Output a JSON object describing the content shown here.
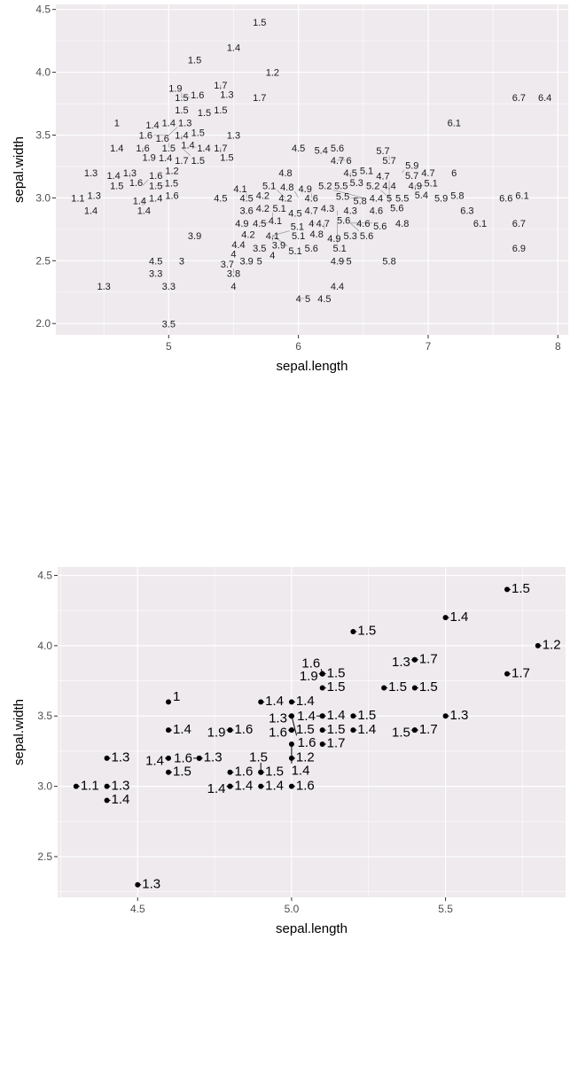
{
  "chart_data": [
    {
      "type": "scatter",
      "geom": "text",
      "xlabel": "sepal.length",
      "ylabel": "sepal.width",
      "xlim": [
        4.13,
        8.08
      ],
      "ylim": [
        1.91,
        4.54
      ],
      "xticks": [
        "5",
        "6",
        "7",
        "8"
      ],
      "xtickvals": [
        5,
        6,
        7,
        8
      ],
      "yticks": [
        "2.0",
        "2.5",
        "3.0",
        "3.5",
        "4.0",
        "4.5"
      ],
      "ytickvals": [
        2.0,
        2.5,
        3.0,
        3.5,
        4.0,
        4.5
      ],
      "grid": true,
      "points": [
        [
          5.1,
          3.5,
          1.4
        ],
        [
          4.9,
          3.0,
          1.4
        ],
        [
          4.7,
          3.2,
          1.3
        ],
        [
          4.6,
          3.1,
          1.5
        ],
        [
          5.0,
          3.6,
          1.4
        ],
        [
          5.4,
          3.9,
          1.7
        ],
        [
          4.6,
          3.4,
          1.4
        ],
        [
          5.0,
          3.4,
          1.5
        ],
        [
          4.4,
          2.9,
          1.4
        ],
        [
          4.9,
          3.1,
          1.5
        ],
        [
          5.4,
          3.7,
          1.5
        ],
        [
          4.8,
          3.4,
          1.6
        ],
        [
          4.8,
          3.0,
          1.4
        ],
        [
          4.3,
          3.0,
          1.1
        ],
        [
          5.8,
          4.0,
          1.2
        ],
        [
          5.7,
          4.4,
          1.5
        ],
        [
          5.4,
          3.9,
          1.3
        ],
        [
          5.1,
          3.5,
          1.4
        ],
        [
          5.7,
          3.8,
          1.7
        ],
        [
          5.1,
          3.8,
          1.5
        ],
        [
          5.4,
          3.4,
          1.7
        ],
        [
          5.1,
          3.7,
          1.5
        ],
        [
          4.6,
          3.6,
          1
        ],
        [
          5.1,
          3.3,
          1.7
        ],
        [
          4.8,
          3.4,
          1.9
        ],
        [
          5.0,
          3.0,
          1.6
        ],
        [
          5.0,
          3.4,
          1.6
        ],
        [
          5.2,
          3.5,
          1.5
        ],
        [
          5.2,
          3.4,
          1.4
        ],
        [
          4.7,
          3.2,
          1.6
        ],
        [
          4.8,
          3.1,
          1.6
        ],
        [
          5.4,
          3.4,
          1.5
        ],
        [
          5.2,
          4.1,
          1.5
        ],
        [
          5.5,
          4.2,
          1.4
        ],
        [
          4.9,
          3.1,
          1.5
        ],
        [
          5.0,
          3.2,
          1.2
        ],
        [
          5.5,
          3.5,
          1.3
        ],
        [
          4.9,
          3.6,
          1.4
        ],
        [
          4.4,
          3.0,
          1.3
        ],
        [
          5.1,
          3.4,
          1.5
        ],
        [
          5.0,
          3.5,
          1.3
        ],
        [
          4.5,
          2.3,
          1.3
        ],
        [
          4.4,
          3.2,
          1.3
        ],
        [
          5.0,
          3.5,
          1.6
        ],
        [
          5.1,
          3.8,
          1.9
        ],
        [
          4.8,
          3.0,
          1.4
        ],
        [
          5.1,
          3.8,
          1.6
        ],
        [
          4.6,
          3.2,
          1.4
        ],
        [
          5.3,
          3.7,
          1.5
        ],
        [
          5.0,
          3.3,
          1.4
        ],
        [
          7.0,
          3.2,
          4.7
        ],
        [
          6.4,
          3.2,
          4.5
        ],
        [
          6.9,
          3.1,
          4.9
        ],
        [
          5.5,
          2.3,
          4
        ],
        [
          6.5,
          2.8,
          4.6
        ],
        [
          5.7,
          2.8,
          4.5
        ],
        [
          6.3,
          3.3,
          4.7
        ],
        [
          4.9,
          2.4,
          3.3
        ],
        [
          6.6,
          2.9,
          4.6
        ],
        [
          5.2,
          2.7,
          3.9
        ],
        [
          5.0,
          2.0,
          3.5
        ],
        [
          5.9,
          3.0,
          4.2
        ],
        [
          6.0,
          2.2,
          4
        ],
        [
          6.1,
          2.9,
          4.7
        ],
        [
          5.6,
          2.9,
          3.6
        ],
        [
          6.7,
          3.1,
          4.4
        ],
        [
          5.6,
          3.0,
          4.5
        ],
        [
          5.8,
          2.7,
          4.1
        ],
        [
          6.2,
          2.2,
          4.5
        ],
        [
          5.6,
          2.5,
          3.9
        ],
        [
          5.9,
          3.2,
          4.8
        ],
        [
          6.1,
          2.8,
          4
        ],
        [
          6.3,
          2.5,
          4.9
        ],
        [
          6.1,
          2.8,
          4.7
        ],
        [
          6.4,
          2.9,
          4.3
        ],
        [
          6.6,
          3.0,
          4.4
        ],
        [
          6.8,
          2.8,
          4.8
        ],
        [
          6.7,
          3.0,
          5
        ],
        [
          6.0,
          2.9,
          4.5
        ],
        [
          5.7,
          2.6,
          3.5
        ],
        [
          5.5,
          2.4,
          3.8
        ],
        [
          5.5,
          2.4,
          3.7
        ],
        [
          5.8,
          2.7,
          3.9
        ],
        [
          6.0,
          2.7,
          5.1
        ],
        [
          5.4,
          3.0,
          4.5
        ],
        [
          6.0,
          3.4,
          4.5
        ],
        [
          6.7,
          3.1,
          4.7
        ],
        [
          6.3,
          2.3,
          4.4
        ],
        [
          5.6,
          3.0,
          4.1
        ],
        [
          5.5,
          2.5,
          4
        ],
        [
          5.5,
          2.6,
          4.4
        ],
        [
          6.1,
          3.0,
          4.6
        ],
        [
          5.8,
          2.6,
          4
        ],
        [
          5.0,
          2.3,
          3.3
        ],
        [
          5.6,
          2.7,
          4.2
        ],
        [
          5.7,
          3.0,
          4.2
        ],
        [
          5.7,
          2.9,
          4.2
        ],
        [
          6.2,
          2.9,
          4.3
        ],
        [
          5.1,
          2.5,
          3
        ],
        [
          5.7,
          2.8,
          4.1
        ],
        [
          6.3,
          3.3,
          6
        ],
        [
          5.8,
          2.7,
          5.1
        ],
        [
          7.1,
          3.0,
          5.9
        ],
        [
          6.3,
          2.9,
          5.6
        ],
        [
          6.5,
          3.0,
          5.8
        ],
        [
          7.6,
          3.0,
          6.6
        ],
        [
          4.9,
          2.5,
          4.5
        ],
        [
          7.3,
          2.9,
          6.3
        ],
        [
          6.7,
          2.5,
          5.8
        ],
        [
          7.2,
          3.6,
          6.1
        ],
        [
          6.5,
          3.2,
          5.1
        ],
        [
          6.4,
          2.7,
          5.3
        ],
        [
          6.8,
          3.0,
          5.5
        ],
        [
          5.7,
          2.5,
          5
        ],
        [
          5.8,
          2.8,
          5.1
        ],
        [
          6.4,
          3.2,
          5.3
        ],
        [
          6.5,
          3.0,
          5.5
        ],
        [
          7.7,
          3.8,
          6.7
        ],
        [
          7.7,
          2.6,
          6.9
        ],
        [
          6.0,
          2.2,
          5
        ],
        [
          6.9,
          3.2,
          5.7
        ],
        [
          5.6,
          2.8,
          4.9
        ],
        [
          7.7,
          2.8,
          6.7
        ],
        [
          6.3,
          2.7,
          4.9
        ],
        [
          6.7,
          3.3,
          5.7
        ],
        [
          7.2,
          3.2,
          6
        ],
        [
          6.2,
          2.8,
          4.8
        ],
        [
          6.1,
          3.0,
          4.9
        ],
        [
          6.4,
          2.8,
          5.6
        ],
        [
          7.2,
          3.0,
          5.8
        ],
        [
          7.4,
          2.8,
          6.1
        ],
        [
          7.9,
          3.8,
          6.4
        ],
        [
          6.4,
          2.8,
          5.6
        ],
        [
          6.3,
          2.8,
          5.1
        ],
        [
          6.1,
          2.6,
          5.6
        ],
        [
          7.7,
          3.0,
          6.1
        ],
        [
          6.3,
          3.4,
          5.6
        ],
        [
          6.4,
          3.1,
          5.5
        ],
        [
          6.0,
          3.0,
          4.8
        ],
        [
          6.9,
          3.1,
          5.4
        ],
        [
          6.7,
          3.1,
          5.6
        ],
        [
          6.9,
          3.1,
          5.1
        ],
        [
          5.8,
          2.7,
          5.1
        ],
        [
          6.8,
          3.2,
          5.9
        ],
        [
          6.7,
          3.3,
          5.7
        ],
        [
          6.7,
          3.0,
          5.2
        ],
        [
          6.3,
          2.5,
          5
        ],
        [
          6.5,
          3.0,
          5.2
        ],
        [
          6.2,
          3.4,
          5.4
        ],
        [
          5.9,
          3.0,
          5.1
        ]
      ]
    },
    {
      "type": "scatter",
      "geom": "point+text_repel",
      "xlabel": "sepal.length",
      "ylabel": "sepal.width",
      "xlim": [
        4.24,
        5.89
      ],
      "ylim": [
        2.21,
        4.56
      ],
      "xticks": [
        "4.5",
        "5.0",
        "5.5"
      ],
      "xtickvals": [
        4.5,
        5.0,
        5.5
      ],
      "yticks": [
        "2.5",
        "3.0",
        "3.5",
        "4.0",
        "4.5"
      ],
      "ytickvals": [
        2.5,
        3.0,
        3.5,
        4.0,
        4.5
      ],
      "grid": true
    }
  ]
}
